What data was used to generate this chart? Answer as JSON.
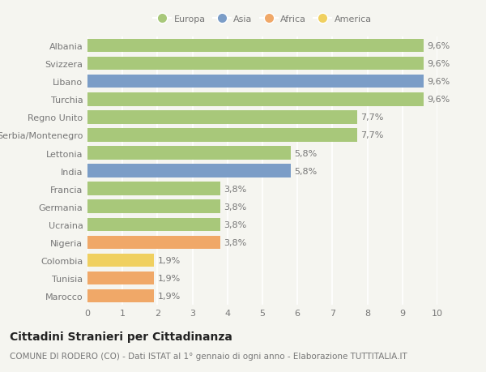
{
  "countries": [
    "Albania",
    "Svizzera",
    "Libano",
    "Turchia",
    "Regno Unito",
    "Serbia/Montenegro",
    "Lettonia",
    "India",
    "Francia",
    "Germania",
    "Ucraina",
    "Nigeria",
    "Colombia",
    "Tunisia",
    "Marocco"
  ],
  "values": [
    9.6,
    9.6,
    9.6,
    9.6,
    7.7,
    7.7,
    5.8,
    5.8,
    3.8,
    3.8,
    3.8,
    3.8,
    1.9,
    1.9,
    1.9
  ],
  "labels": [
    "9,6%",
    "9,6%",
    "9,6%",
    "9,6%",
    "7,7%",
    "7,7%",
    "5,8%",
    "5,8%",
    "3,8%",
    "3,8%",
    "3,8%",
    "3,8%",
    "1,9%",
    "1,9%",
    "1,9%"
  ],
  "continents": [
    "Europa",
    "Europa",
    "Asia",
    "Europa",
    "Europa",
    "Europa",
    "Europa",
    "Asia",
    "Europa",
    "Europa",
    "Europa",
    "Africa",
    "America",
    "Africa",
    "Africa"
  ],
  "continent_colors": {
    "Europa": "#a8c87a",
    "Asia": "#7b9dc7",
    "Africa": "#f0a868",
    "America": "#f0d060"
  },
  "legend_order": [
    "Europa",
    "Asia",
    "Africa",
    "America"
  ],
  "title": "Cittadini Stranieri per Cittadinanza",
  "subtitle": "COMUNE DI RODERO (CO) - Dati ISTAT al 1° gennaio di ogni anno - Elaborazione TUTTITALIA.IT",
  "xlim": [
    0,
    10
  ],
  "xticks": [
    0,
    1,
    2,
    3,
    4,
    5,
    6,
    7,
    8,
    9,
    10
  ],
  "bg_color": "#f5f5f0",
  "grid_color": "#ffffff",
  "bar_height": 0.75,
  "label_fontsize": 8,
  "title_fontsize": 10,
  "subtitle_fontsize": 7.5,
  "tick_fontsize": 8,
  "text_color": "#777777",
  "title_color": "#222222"
}
